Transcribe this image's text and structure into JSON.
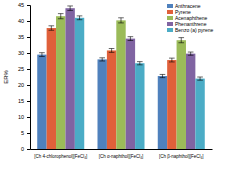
{
  "chart_data": {
    "type": "bar",
    "y_label": "ER%",
    "categories": [
      "[Ch 4-chlorophenol][FeCl₄]",
      "[Ch α-naphthol][FeCl₄]",
      "[Ch β-naphthol][FeCl₄]"
    ],
    "series": [
      {
        "name": "Anthracene",
        "color": "#4f81bd",
        "values": [
          29.5,
          28,
          22.8
        ],
        "errors": [
          0.6,
          0.5,
          0.5
        ]
      },
      {
        "name": "Pyrene",
        "color": "#e0603a",
        "values": [
          37.8,
          30.8,
          27.8
        ],
        "errors": [
          0.7,
          0.6,
          0.6
        ]
      },
      {
        "name": "Acenaphthene",
        "color": "#9bbb59",
        "values": [
          41.5,
          40.2,
          34
        ],
        "errors": [
          0.8,
          0.8,
          0.8
        ]
      },
      {
        "name": "Phenanthrene",
        "color": "#8064a2",
        "values": [
          44,
          34.5,
          29.8
        ],
        "errors": [
          0.7,
          0.6,
          0.5
        ]
      },
      {
        "name": "Benzo (a) pyrene",
        "color": "#4bacc6",
        "values": [
          41,
          26.8,
          22
        ],
        "errors": [
          0.6,
          0.5,
          0.5
        ]
      }
    ],
    "ylim": [
      0,
      45
    ],
    "yticks": [
      0,
      5,
      10,
      15,
      20,
      25,
      30,
      35,
      40,
      45
    ],
    "legend": "upper right",
    "grid": false
  }
}
